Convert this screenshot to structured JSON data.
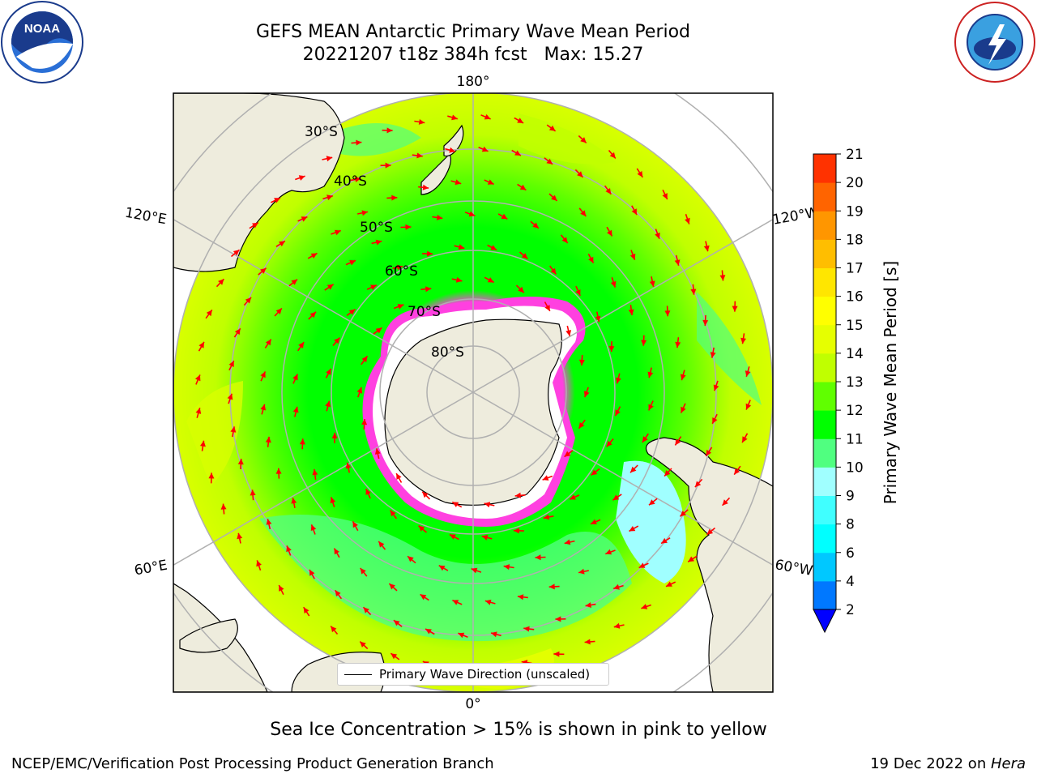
{
  "title": {
    "line1": "GEFS MEAN Antarctic Primary Wave Mean Period",
    "line2": "20221207 t18z 384h fcst   Max: 15.27"
  },
  "logos": {
    "left": "noaa-logo",
    "left_text": "NOAA",
    "right": "nws-logo",
    "right_text": "NATIONAL WEATHER SERVICE"
  },
  "map": {
    "projection": "south-polar-stereographic",
    "longitude_labels": {
      "top": "180°",
      "bottom": "0°",
      "upper_left": "120°E",
      "upper_right": "120°W",
      "lower_left": "60°E",
      "lower_right": "60°W"
    },
    "latitude_labels": [
      "30°S",
      "40°S",
      "50°S",
      "60°S",
      "70°S",
      "80°S"
    ],
    "colors": {
      "land": "#eeecdd",
      "ice_free_center": "#ffffff",
      "gridlines": "#b0b0b0",
      "arrows": "#ff0000",
      "sea_ice_edge": "#ff40e0"
    }
  },
  "legend": {
    "label": "Primary Wave Direction (unscaled)"
  },
  "colorbar": {
    "label": "Primary Wave Mean Period [s]",
    "ticks": [
      "2",
      "4",
      "6",
      "8",
      "9",
      "10",
      "11",
      "12",
      "13",
      "14",
      "15",
      "16",
      "17",
      "18",
      "19",
      "20",
      "21"
    ],
    "colors": [
      "#0078ff",
      "#00c8ff",
      "#00ffff",
      "#40ffff",
      "#a0ffff",
      "#50ff80",
      "#00ff00",
      "#60ff00",
      "#c0ff00",
      "#e6ff00",
      "#ffff00",
      "#ffe600",
      "#ffbe00",
      "#ff9600",
      "#ff6400",
      "#ff3200"
    ],
    "under_color": "#0000ff"
  },
  "note": "Sea Ice Concentration > 15% is shown in pink to yellow",
  "footer": {
    "left": "NCEP/EMC/Verification Post Processing Product Generation Branch",
    "right_date": "19 Dec 2022 on ",
    "right_machine": "Hera"
  }
}
